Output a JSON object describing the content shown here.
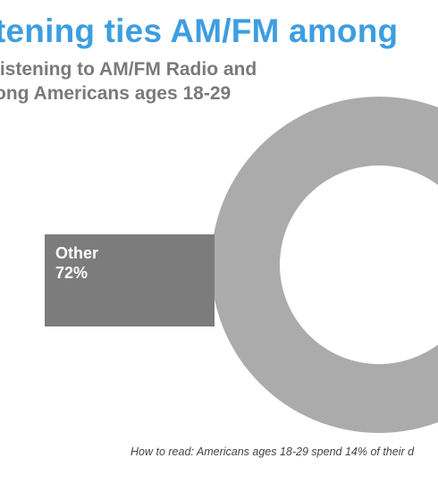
{
  "chart_data": {
    "type": "pie",
    "style": "donut",
    "title": "tening ties AM/FM among",
    "subtitle_lines": [
      "listening to AM/FM Radio and",
      "ong Americans ages 18-29"
    ],
    "categories": [
      "Other",
      "AM/FM Radio"
    ],
    "values": [
      72,
      14
    ],
    "colors": [
      "#ababab",
      "#3d9ee0"
    ],
    "callout": {
      "label": "Other",
      "value_text": "72%",
      "color": "#7c7c7c"
    },
    "footnote": "How to read: Americans ages 18-29 spend 14% of their d"
  }
}
